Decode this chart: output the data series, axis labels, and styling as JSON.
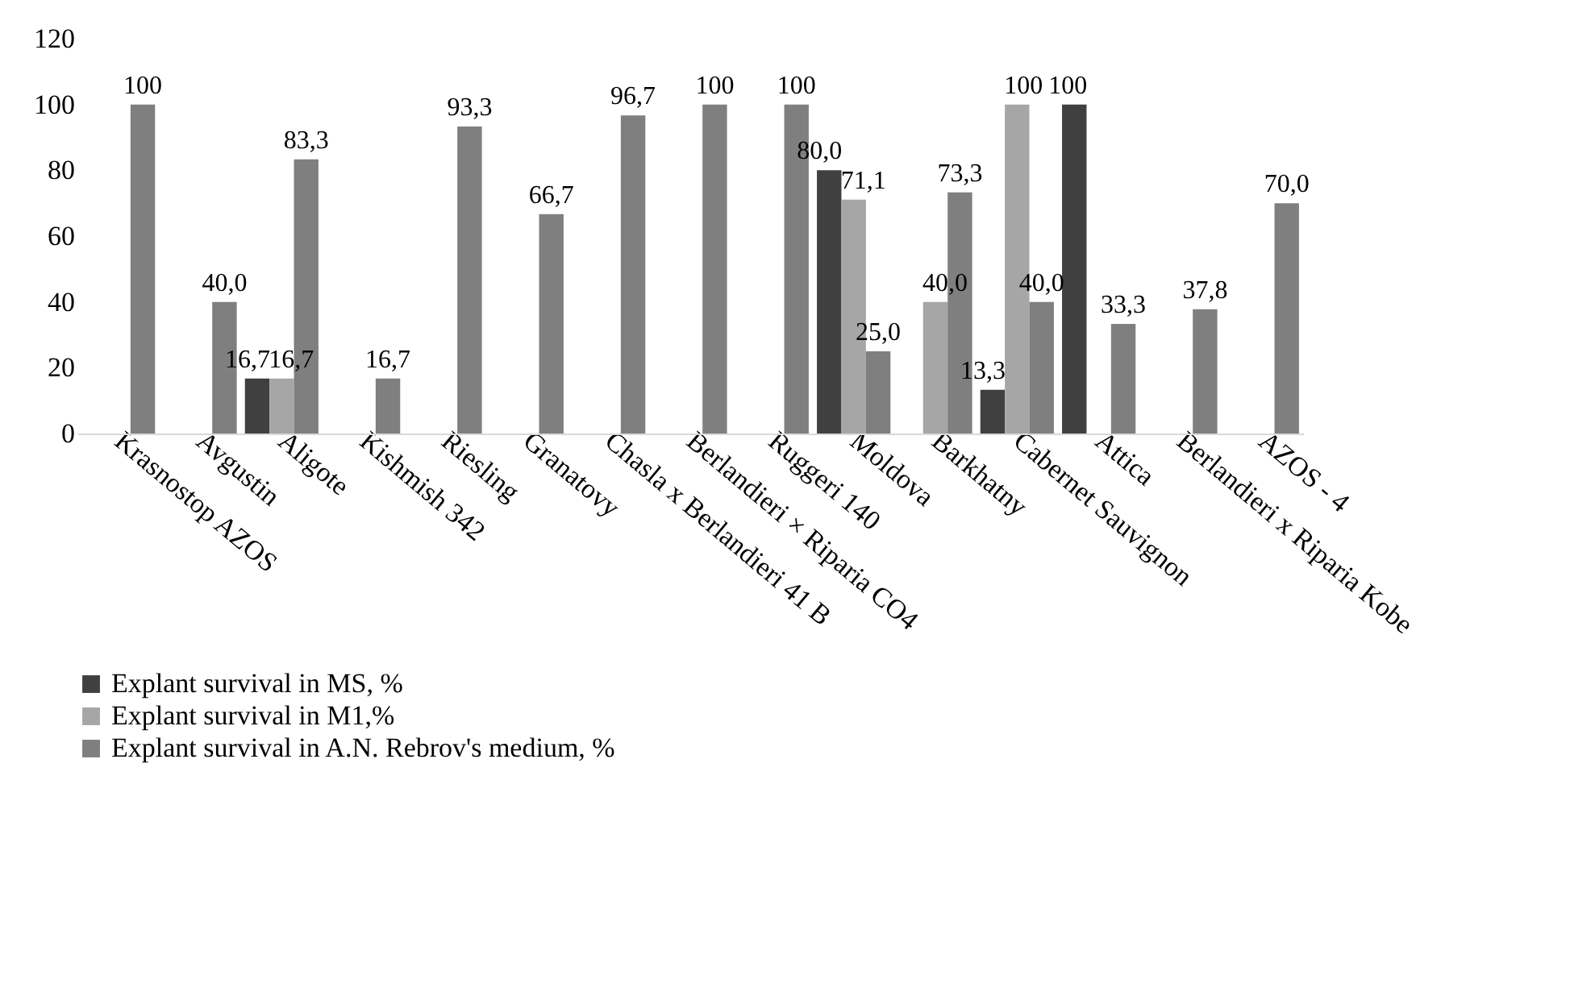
{
  "chart_data": {
    "type": "bar",
    "categories": [
      "Krasnostop AZOS",
      "Avgustin",
      "Aligote",
      "Kishmish 342",
      "Riesling",
      "Granatovy",
      "Chasla x Berlandieri 41 B",
      "Berlandieri × Riparia CO4",
      "Ruggeri 140",
      "Moldova",
      "Barkhatny",
      "Cabernet Sauvignon",
      "Attica",
      "Berlandieri x Riparia Kobe",
      "AZOS - 4"
    ],
    "series": [
      {
        "name": "Explant survival in MS, %",
        "color": "#404040",
        "values": [
          null,
          null,
          16.7,
          null,
          null,
          null,
          null,
          null,
          null,
          80,
          null,
          13.3,
          100,
          null,
          null
        ],
        "value_labels": [
          null,
          null,
          "16,7",
          null,
          null,
          null,
          null,
          null,
          null,
          "80,0",
          null,
          "13,3",
          "100",
          null,
          null
        ]
      },
      {
        "name": "Explant survival in M1,%",
        "color": "#a6a6a6",
        "values": [
          null,
          null,
          16.7,
          null,
          null,
          null,
          null,
          null,
          null,
          71.1,
          40,
          100,
          null,
          null,
          null
        ],
        "value_labels": [
          null,
          null,
          "16,7",
          null,
          null,
          null,
          null,
          null,
          null,
          "71,1",
          "40,0",
          "100",
          null,
          null,
          null
        ]
      },
      {
        "name": "Explant survival in A.N. Rebrov's medium, %",
        "color": "#7f7f7f",
        "values": [
          100,
          40,
          83.3,
          16.7,
          93.3,
          66.7,
          96.7,
          100,
          100,
          25,
          73.3,
          40,
          33.3,
          37.8,
          70
        ],
        "value_labels": [
          "100",
          "40,0",
          "83,3",
          "16,7",
          "93,3",
          "66,7",
          "96,7",
          "100",
          "100",
          "25,0",
          "73,3",
          "40,0",
          "33,3",
          "37,8",
          "70,0"
        ]
      }
    ],
    "ylim": [
      0,
      120
    ],
    "yticks": [
      0,
      20,
      40,
      60,
      80,
      100,
      120
    ],
    "legend": "bottom"
  }
}
